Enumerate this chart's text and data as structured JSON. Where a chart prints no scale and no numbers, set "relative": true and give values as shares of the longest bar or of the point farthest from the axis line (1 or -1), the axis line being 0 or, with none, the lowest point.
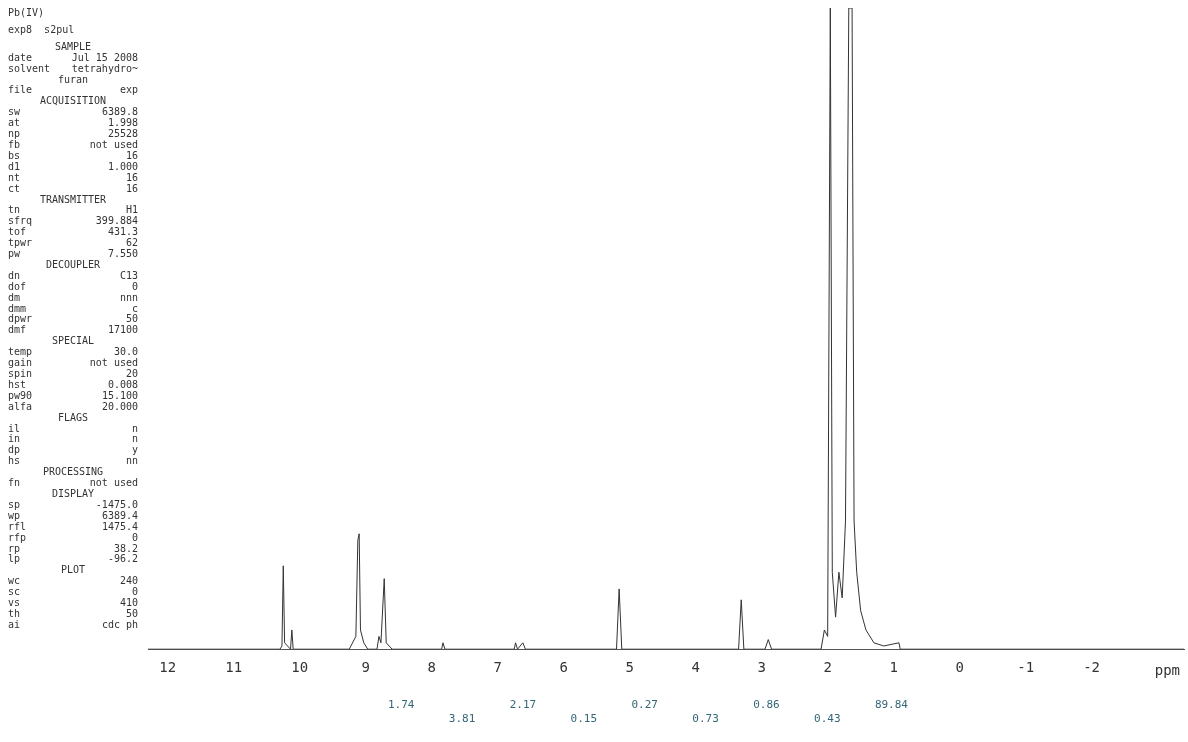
{
  "chart_data": {
    "type": "line",
    "title": "Pb(IV)",
    "subtitle": "exp8  s2pul",
    "xlabel": "ppm",
    "relative": true,
    "x": [
      12.3,
      10.3,
      10.27,
      10.25,
      10.23,
      10.14,
      10.12,
      10.1,
      9.25,
      9.15,
      9.12,
      9.1,
      9.08,
      9.03,
      8.97,
      8.83,
      8.8,
      8.77,
      8.72,
      8.69,
      8.6,
      7.85,
      7.83,
      7.8,
      6.75,
      6.73,
      6.7,
      6.62,
      6.58,
      5.2,
      5.16,
      5.12,
      3.35,
      3.31,
      3.27,
      2.95,
      2.9,
      2.85,
      2.1,
      2.05,
      2.0,
      1.96,
      1.93,
      1.88,
      1.83,
      1.78,
      1.73,
      1.68,
      1.63,
      1.6,
      1.56,
      1.5,
      1.42,
      1.3,
      1.15,
      0.92,
      0.9,
      -3.4
    ],
    "values": [
      0,
      0,
      0.005,
      0.13,
      0.01,
      0,
      0.03,
      0,
      0,
      0.02,
      0.17,
      0.18,
      0.03,
      0.01,
      0,
      0,
      0.02,
      0.01,
      0.11,
      0.01,
      0,
      0,
      0.01,
      0,
      0,
      0.01,
      0,
      0.01,
      0,
      0,
      0.094,
      0,
      0,
      0.077,
      0,
      0,
      0.015,
      0,
      0,
      0.03,
      0.02,
      1,
      0.12,
      0.05,
      0.12,
      0.08,
      0.2,
      1,
      1,
      0.2,
      0.12,
      0.06,
      0.03,
      0.01,
      0.005,
      0.01,
      0,
      0
    ],
    "color": "#333333",
    "xlim": [
      12.3,
      -3.4
    ],
    "xticks": [
      12,
      11,
      10,
      9,
      8,
      7,
      6,
      5,
      4,
      3,
      2,
      1,
      0,
      -1,
      -2
    ],
    "grid": false,
    "legend": false,
    "annotations": [
      "SAMPLE",
      "date Jul 15 2008",
      "solvent tetrahydro~",
      "furan",
      "file exp",
      "ACQUISITION",
      "sw 6389.8",
      "at 1.998",
      "np 25528",
      "fb not used",
      "bs 16",
      "d1 1.000",
      "nt 16",
      "ct 16",
      "TRANSMITTER",
      "tn H1",
      "sfrq 399.884",
      "tof 431.3",
      "tpwr 62",
      "pw 7.550",
      "DECOUPLER",
      "dn C13",
      "dof 0",
      "dm nnn",
      "dmm c",
      "dpwr 50",
      "dmf 17100",
      "SPECIAL",
      "temp 30.0",
      "gain not used",
      "spin 20",
      "hst 0.008",
      "pw90 15.100",
      "alfa 20.000",
      "FLAGS",
      "il n",
      "in n",
      "dp y",
      "hs nn",
      "PROCESSING",
      "fn not used",
      "DISPLAY",
      "sp -1475.0",
      "wp 6389.4",
      "rfl 1475.4",
      "rfp 0",
      "rp 38.2",
      "lp -96.2",
      "PLOT",
      "wc 240",
      "sc 0",
      "vs 410",
      "th 50",
      "ai cdc ph",
      "1.74",
      "3.81",
      "2.17",
      "0.15",
      "0.27",
      "0.73",
      "0.86",
      "0.43",
      "89.84"
    ]
  }
}
